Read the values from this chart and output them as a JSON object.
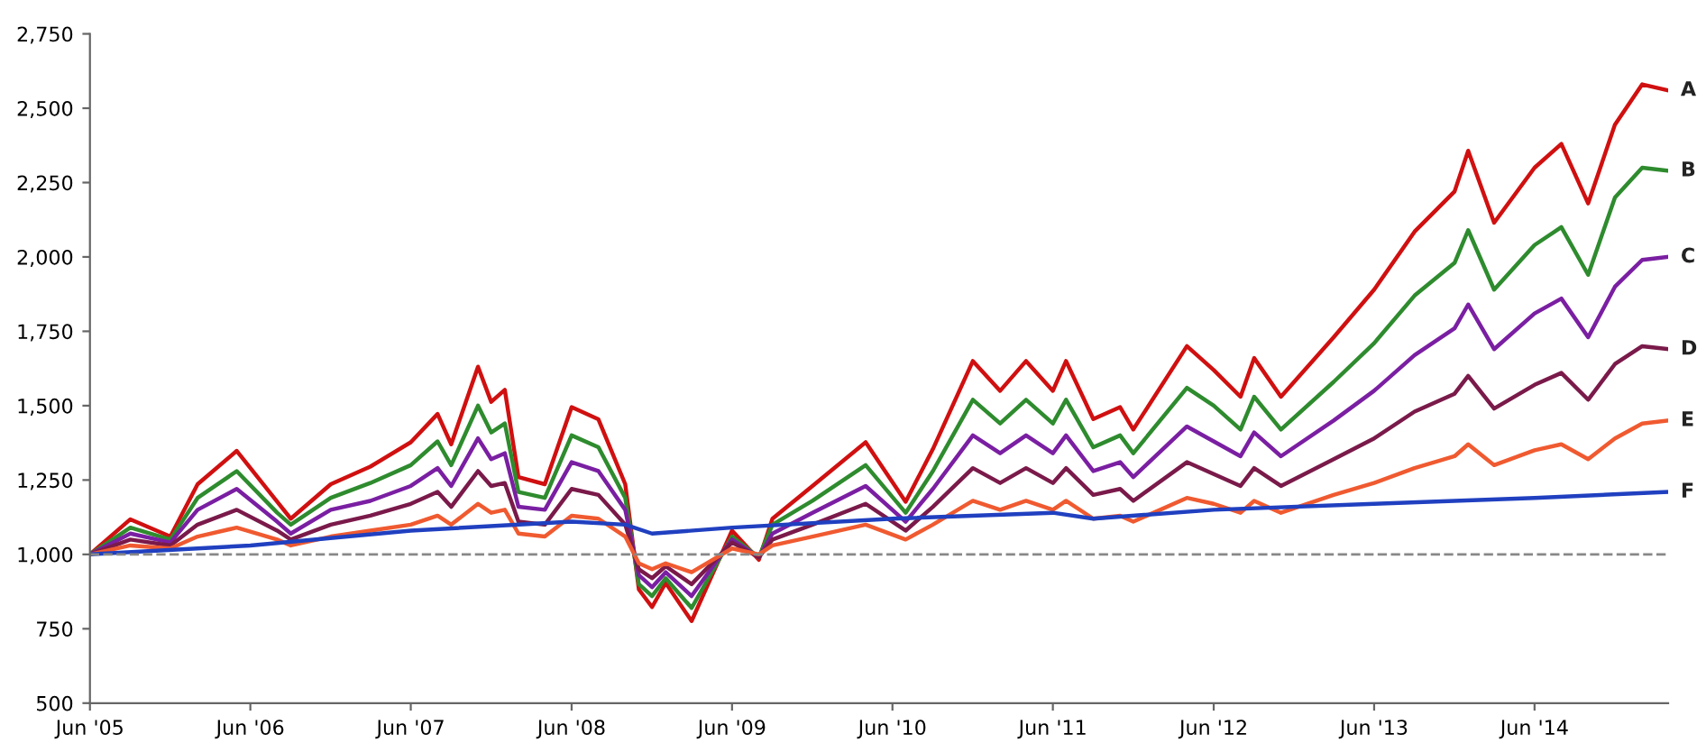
{
  "chart_data": {
    "type": "line",
    "x": [
      "2005-06",
      "2005-09",
      "2005-12",
      "2006-02",
      "2006-05",
      "2006-08",
      "2006-09",
      "2006-12",
      "2007-03",
      "2007-06",
      "2007-08",
      "2007-09",
      "2007-11",
      "2007-12",
      "2008-01",
      "2008-02",
      "2008-04",
      "2008-06",
      "2008-08",
      "2008-10",
      "2008-11",
      "2008-12",
      "2009-01",
      "2009-03",
      "2009-06",
      "2009-08",
      "2009-09",
      "2009-12",
      "2010-04",
      "2010-07",
      "2010-09",
      "2010-12",
      "2011-02",
      "2011-04",
      "2011-06",
      "2011-07",
      "2011-09",
      "2011-11",
      "2011-12",
      "2012-04",
      "2012-06",
      "2012-08",
      "2012-09",
      "2012-11",
      "2013-03",
      "2013-06",
      "2013-09",
      "2013-12",
      "2014-01",
      "2014-03",
      "2014-06",
      "2014-08",
      "2014-10",
      "2014-12",
      "2015-02",
      "2015-04"
    ],
    "series": [
      {
        "name": "A",
        "color": "#d01010",
        "values": [
          1000,
          1118,
          1060,
          1236,
          1348,
          1177,
          1120,
          1236,
          1295,
          1377,
          1472,
          1370,
          1631,
          1513,
          1553,
          1260,
          1236,
          1495,
          1454,
          1236,
          882,
          823,
          904,
          776,
          1080,
          982,
          1120,
          1230,
          1377,
          1177,
          1354,
          1650,
          1550,
          1650,
          1550,
          1650,
          1455,
          1495,
          1420,
          1700,
          1620,
          1530,
          1660,
          1530,
          1730,
          1890,
          2085,
          2220,
          2357,
          2115,
          2300,
          2380,
          2180,
          2445,
          2580,
          2560
        ]
      },
      {
        "name": "B",
        "color": "#2e8b2e",
        "values": [
          1000,
          1090,
          1050,
          1190,
          1280,
          1140,
          1100,
          1190,
          1240,
          1300,
          1380,
          1300,
          1500,
          1410,
          1440,
          1210,
          1190,
          1400,
          1360,
          1190,
          900,
          860,
          920,
          820,
          1060,
          990,
          1100,
          1180,
          1300,
          1140,
          1280,
          1520,
          1440,
          1520,
          1440,
          1520,
          1360,
          1400,
          1340,
          1560,
          1500,
          1420,
          1530,
          1420,
          1580,
          1710,
          1870,
          1980,
          2090,
          1890,
          2040,
          2100,
          1940,
          2200,
          2300,
          2290
        ]
      },
      {
        "name": "C",
        "color": "#7a1fa2",
        "values": [
          1000,
          1070,
          1040,
          1150,
          1220,
          1110,
          1070,
          1150,
          1180,
          1230,
          1290,
          1230,
          1390,
          1320,
          1340,
          1160,
          1150,
          1310,
          1280,
          1150,
          930,
          890,
          940,
          860,
          1050,
          990,
          1070,
          1140,
          1230,
          1110,
          1220,
          1400,
          1340,
          1400,
          1340,
          1400,
          1280,
          1310,
          1260,
          1430,
          1380,
          1330,
          1410,
          1330,
          1450,
          1550,
          1670,
          1760,
          1840,
          1690,
          1810,
          1860,
          1730,
          1900,
          1990,
          2000
        ]
      },
      {
        "name": "D",
        "color": "#7a1a4a",
        "values": [
          1000,
          1050,
          1030,
          1100,
          1150,
          1080,
          1050,
          1100,
          1130,
          1170,
          1210,
          1160,
          1280,
          1230,
          1240,
          1110,
          1100,
          1220,
          1200,
          1100,
          950,
          920,
          960,
          900,
          1040,
          990,
          1050,
          1100,
          1170,
          1080,
          1160,
          1290,
          1240,
          1290,
          1240,
          1290,
          1200,
          1220,
          1180,
          1310,
          1270,
          1230,
          1290,
          1230,
          1320,
          1390,
          1480,
          1540,
          1600,
          1490,
          1570,
          1610,
          1520,
          1640,
          1700,
          1690
        ]
      },
      {
        "name": "E",
        "color": "#f05a30",
        "values": [
          1000,
          1030,
          1020,
          1060,
          1090,
          1050,
          1030,
          1060,
          1080,
          1100,
          1130,
          1100,
          1170,
          1140,
          1150,
          1070,
          1060,
          1130,
          1120,
          1060,
          970,
          950,
          970,
          940,
          1020,
          1000,
          1030,
          1060,
          1100,
          1050,
          1100,
          1180,
          1150,
          1180,
          1150,
          1180,
          1120,
          1130,
          1110,
          1190,
          1170,
          1140,
          1180,
          1140,
          1200,
          1240,
          1290,
          1330,
          1370,
          1300,
          1350,
          1370,
          1320,
          1390,
          1440,
          1450
        ]
      },
      {
        "name": "F",
        "color": "#2040c0",
        "x": [
          "2005-06",
          "2006-06",
          "2007-06",
          "2008-06",
          "2008-10",
          "2008-12",
          "2009-06",
          "2010-06",
          "2011-06",
          "2011-09",
          "2012-06",
          "2013-06",
          "2014-06",
          "2015-04"
        ],
        "values": [
          1000,
          1030,
          1080,
          1110,
          1100,
          1070,
          1090,
          1120,
          1140,
          1120,
          1150,
          1170,
          1190,
          1210
        ]
      }
    ],
    "xlim": [
      "2005-06",
      "2015-04"
    ],
    "xticks": [
      {
        "value": "2005-06",
        "label": "Jun '05"
      },
      {
        "value": "2006-06",
        "label": "Jun '06"
      },
      {
        "value": "2007-06",
        "label": "Jun '07"
      },
      {
        "value": "2008-06",
        "label": "Jun '08"
      },
      {
        "value": "2009-06",
        "label": "Jun '09"
      },
      {
        "value": "2010-06",
        "label": "Jun '10"
      },
      {
        "value": "2011-06",
        "label": "Jun '11"
      },
      {
        "value": "2012-06",
        "label": "Jun '12"
      },
      {
        "value": "2013-06",
        "label": "Jun '13"
      },
      {
        "value": "2014-06",
        "label": "Jun '14"
      }
    ],
    "ylim": [
      500,
      2750
    ],
    "yticks": [
      500,
      750,
      {
        "value": 1000,
        "label": "1,000"
      },
      {
        "value": 1250,
        "label": "1,250"
      },
      {
        "value": 1500,
        "label": "1,500"
      },
      {
        "value": 1750,
        "label": "1,750"
      },
      {
        "value": 2000,
        "label": "2,000"
      },
      {
        "value": 2250,
        "label": "2,250"
      },
      {
        "value": 2500,
        "label": "2,500"
      },
      {
        "value": 2750,
        "label": "2,750"
      }
    ],
    "ref_lines": [
      {
        "axis": "y",
        "value": 1000,
        "color": "#888888",
        "line_style": "dashed"
      }
    ],
    "grid": false,
    "legend": false,
    "marker": "none",
    "line_style": "solid"
  }
}
